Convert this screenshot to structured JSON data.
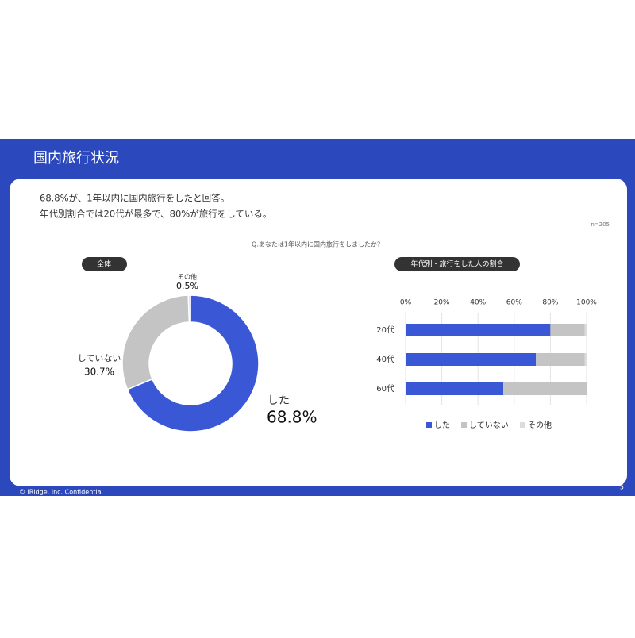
{
  "header": {
    "title": "国内旅行状況"
  },
  "summary": [
    "68.8%が、1年以内に国内旅行をしたと回答。",
    "年代別割合では20代が最多で、80%が旅行をしている。"
  ],
  "sample_size": "n=205",
  "question": "Q.あなたは1年以内に国内旅行をしましたか？",
  "chart_data": [
    {
      "type": "donut",
      "title": "全体",
      "categories": [
        "した",
        "していない",
        "その他"
      ],
      "values": [
        68.8,
        30.7,
        0.5
      ],
      "value_labels": [
        "68.8%",
        "30.7%",
        "0.5%"
      ],
      "colors": [
        "#3a57d6",
        "#c4c4c4",
        "#dcdcdc"
      ]
    },
    {
      "type": "stacked-barh",
      "title": "年代別・旅行をした人の割合",
      "categories": [
        "20代",
        "40代",
        "60代"
      ],
      "series": [
        {
          "name": "した",
          "color": "#3a57d6",
          "values": [
            80,
            72,
            54
          ]
        },
        {
          "name": "していない",
          "color": "#c4c4c4",
          "values": [
            19,
            27,
            46
          ]
        },
        {
          "name": "その他",
          "color": "#dcdcdc",
          "values": [
            1,
            1,
            0
          ]
        }
      ],
      "xlim": [
        0,
        100
      ],
      "xticks": [
        {
          "value": 0,
          "label": "0%"
        },
        {
          "value": 20,
          "label": "20%"
        },
        {
          "value": 40,
          "label": "40%"
        },
        {
          "value": 60,
          "label": "60%"
        },
        {
          "value": 80,
          "label": "80%"
        },
        {
          "value": 100,
          "label": "100%"
        }
      ],
      "grid": true,
      "legend": "bottom"
    }
  ],
  "footer": {
    "copyright": "© iRidge, Inc. Confidential",
    "page": "5"
  }
}
